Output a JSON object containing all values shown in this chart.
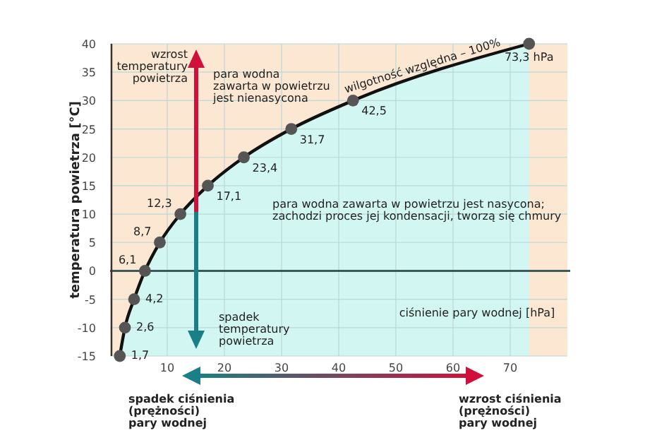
{
  "chart_data": {
    "type": "line",
    "ylabel": "temperatura powietrza [°C]",
    "xlabel": "ciśnienie pary wodnej [hPa]",
    "x": [
      1.7,
      2.6,
      4.2,
      6.1,
      8.7,
      12.3,
      17.1,
      23.4,
      31.7,
      42.5,
      73.3
    ],
    "series": [
      {
        "type": "line",
        "color": "#111111",
        "marker": "circle",
        "values": [
          -15,
          -10,
          -5,
          0,
          5,
          10,
          15,
          20,
          25,
          30,
          40
        ]
      }
    ],
    "xlim": [
      0,
      80
    ],
    "xticks": [
      10,
      20,
      30,
      40,
      50,
      60,
      70
    ],
    "ylim": [
      -15,
      40
    ],
    "yticks": [
      -15,
      -10,
      -5,
      0,
      5,
      10,
      15,
      20,
      25,
      30,
      35,
      40
    ],
    "grid": true,
    "ref_lines": [
      {
        "axis": "y",
        "value": 0,
        "color": "#3d5a5a"
      }
    ],
    "annotations": [
      "wzrost\ntemperatury\npowietrza",
      "para wodna\nzawarta w powietrzu\njest nienasycona",
      "wilgotność względna – 100%",
      "para wodna zawarta w powietrzu jest nasycona;\nzachodzi proces jej kondensacji, tworzą się chmury",
      "spadek\ntemperatury\npowietrza",
      "spadek ciśnienia\n(prężności)\npary wodnej",
      "wzrost ciśnienia\n(prężności)\npary wodnej",
      {
        "text": "1,7",
        "x": 1.7,
        "y": -15
      },
      {
        "text": "2,6",
        "x": 2.6,
        "y": -10
      },
      {
        "text": "4,2",
        "x": 4.2,
        "y": -5
      },
      {
        "text": "6,1",
        "x": 6.1,
        "y": 0
      },
      {
        "text": "8,7",
        "x": 8.7,
        "y": 5
      },
      {
        "text": "12,3",
        "x": 12.3,
        "y": 10
      },
      {
        "text": "17,1",
        "x": 17.1,
        "y": 15
      },
      {
        "text": "23,4",
        "x": 23.4,
        "y": 20
      },
      {
        "text": "31,7",
        "x": 31.7,
        "y": 25
      },
      {
        "text": "42,5",
        "x": 42.5,
        "y": 30
      },
      {
        "text": "73,3 hPa",
        "x": 73.3,
        "y": 40
      }
    ]
  }
}
